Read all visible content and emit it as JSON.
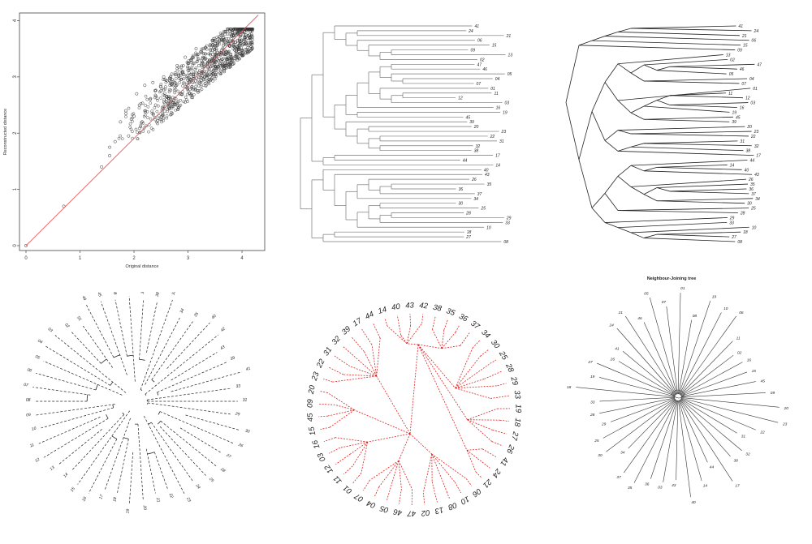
{
  "colors": {
    "points": "#333333",
    "fit_line": "#e8484e",
    "tree_line": "#777777",
    "dashed_tree": "#222222",
    "red_tree": "#e02020"
  },
  "chart_data": [
    {
      "type": "scatter",
      "xlabel": "Original distance",
      "ylabel": "Reconstructed distance",
      "xlim": [
        0,
        4.3
      ],
      "ylim": [
        0,
        4.05
      ],
      "x_ticks": [
        "0",
        "1",
        "2",
        "3",
        "4"
      ],
      "y_ticks": [
        "0",
        "1",
        "2",
        "3",
        "4"
      ],
      "grid": false,
      "fit_line": {
        "x": [
          0,
          4.3
        ],
        "y": [
          0,
          4.3
        ]
      },
      "cluster": {
        "x_range": [
          1.7,
          4.2
        ],
        "y_range": [
          1.9,
          3.85
        ],
        "note_count": 0
      },
      "points": [
        [
          0,
          0
        ],
        [
          0.7,
          0.7
        ],
        [
          1.4,
          1.4
        ],
        [
          1.55,
          1.6
        ],
        [
          1.55,
          1.75
        ],
        [
          1.65,
          1.85
        ],
        [
          1.75,
          2.2
        ],
        [
          1.85,
          2.35
        ],
        [
          1.85,
          2.4
        ],
        [
          1.9,
          1.95
        ],
        [
          1.95,
          2.25
        ],
        [
          2.0,
          2.3
        ],
        [
          2.05,
          2.7
        ],
        [
          2.1,
          2.5
        ],
        [
          2.15,
          2.2
        ],
        [
          2.2,
          2.85
        ],
        [
          2.3,
          2.6
        ],
        [
          2.35,
          2.9
        ],
        [
          2.4,
          2.5
        ],
        [
          2.5,
          2.75
        ],
        [
          2.55,
          3.0
        ],
        [
          2.6,
          2.65
        ],
        [
          2.7,
          3.05
        ],
        [
          2.75,
          2.9
        ],
        [
          2.8,
          3.2
        ],
        [
          2.85,
          2.7
        ],
        [
          2.9,
          3.1
        ],
        [
          2.95,
          3.35
        ],
        [
          3.0,
          2.85
        ],
        [
          3.05,
          3.3
        ],
        [
          3.1,
          3.05
        ],
        [
          3.15,
          3.5
        ],
        [
          3.2,
          3.2
        ],
        [
          3.25,
          3.45
        ],
        [
          3.3,
          3.1
        ],
        [
          3.35,
          3.55
        ],
        [
          3.4,
          3.3
        ],
        [
          3.45,
          3.65
        ],
        [
          3.5,
          3.4
        ],
        [
          3.55,
          3.6
        ],
        [
          3.6,
          3.2
        ],
        [
          3.65,
          3.7
        ],
        [
          3.7,
          3.45
        ],
        [
          3.75,
          3.6
        ],
        [
          3.8,
          3.35
        ],
        [
          3.85,
          3.75
        ],
        [
          3.9,
          3.5
        ],
        [
          3.95,
          3.65
        ],
        [
          4.0,
          3.4
        ],
        [
          4.2,
          3.85
        ]
      ]
    },
    {
      "type": "dendrogram",
      "style": "rectangular",
      "tips": [
        "41",
        "24",
        "21",
        "06",
        "15",
        "09",
        "13",
        "02",
        "47",
        "46",
        "05",
        "04",
        "07",
        "01",
        "11",
        "12",
        "03",
        "16",
        "19",
        "45",
        "39",
        "20",
        "23",
        "22",
        "31",
        "32",
        "38",
        "17",
        "44",
        "14",
        "40",
        "43",
        "26",
        "35",
        "36",
        "37",
        "34",
        "30",
        "25",
        "28",
        "29",
        "33",
        "10",
        "18",
        "27",
        "08"
      ]
    },
    {
      "type": "dendrogram",
      "style": "slanted",
      "tips": [
        "41",
        "24",
        "21",
        "06",
        "15",
        "09",
        "13",
        "02",
        "47",
        "46",
        "05",
        "04",
        "07",
        "01",
        "11",
        "12",
        "03",
        "16",
        "19",
        "45",
        "39",
        "20",
        "23",
        "22",
        "31",
        "32",
        "38",
        "17",
        "44",
        "14",
        "40",
        "43",
        "26",
        "35",
        "36",
        "37",
        "34",
        "30",
        "25",
        "28",
        "29",
        "33",
        "10",
        "18",
        "27",
        "08"
      ]
    },
    {
      "type": "dendrogram",
      "style": "fan-dashed",
      "tips": [
        "36",
        "38",
        "37",
        "34",
        "35",
        "40",
        "42",
        "43",
        "39",
        "41",
        "33",
        "31",
        "29",
        "30",
        "26",
        "27",
        "28",
        "25",
        "24",
        "23",
        "22",
        "21",
        "20",
        "19",
        "18",
        "17",
        "16",
        "15",
        "14",
        "13",
        "12",
        "11",
        "10",
        "09",
        "08",
        "07",
        "06",
        "05",
        "04",
        "03",
        "02",
        "01",
        "44",
        "45",
        "46",
        "47"
      ]
    },
    {
      "type": "dendrogram",
      "style": "circular",
      "tips": [
        "14",
        "40",
        "43",
        "42",
        "38",
        "35",
        "36",
        "37",
        "34",
        "30",
        "25",
        "28",
        "29",
        "33",
        "19",
        "18",
        "27",
        "26",
        "41",
        "24",
        "21",
        "06",
        "10",
        "08",
        "13",
        "02",
        "47",
        "46",
        "05",
        "04",
        "07",
        "01",
        "11",
        "12",
        "03",
        "16",
        "15",
        "45",
        "09",
        "20",
        "23",
        "22",
        "31",
        "32",
        "39",
        "17",
        "44"
      ]
    },
    {
      "type": "dendrogram",
      "style": "unrooted",
      "title": "Neighbour-Joining tree",
      "tips": [
        "46",
        "05",
        "07",
        "01",
        "08",
        "19",
        "10",
        "06",
        "11",
        "02",
        "16",
        "15",
        "45",
        "09",
        "20",
        "23",
        "22",
        "31",
        "32",
        "38",
        "17",
        "44",
        "14",
        "40",
        "43",
        "03",
        "36",
        "35",
        "37",
        "34",
        "30",
        "25",
        "29",
        "28",
        "33",
        "18",
        "19b",
        "27",
        "26",
        "41",
        "24",
        "21"
      ]
    }
  ]
}
